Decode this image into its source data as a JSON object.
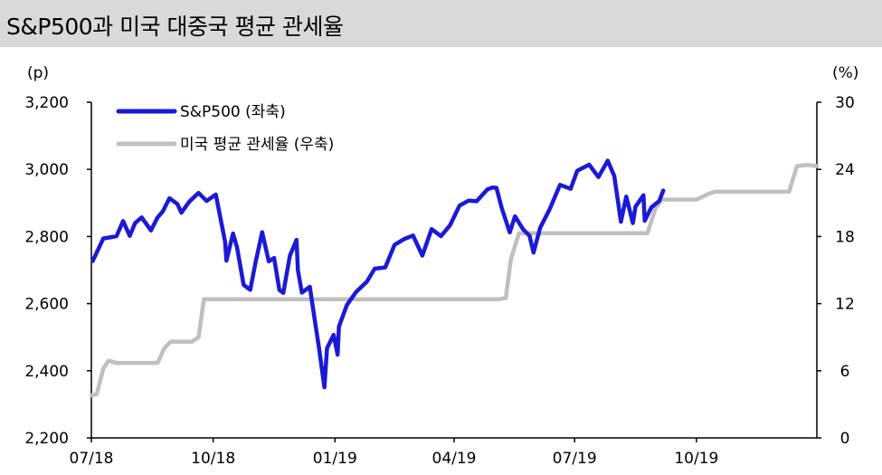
{
  "title": "S&P500과 미국 대중국 평균 관세율",
  "colors": {
    "sp500": "#1a1ad6",
    "tariff": "#bfbfbf",
    "axis": "#000000",
    "title_bg": "#d9d9d9"
  },
  "chart_data": {
    "type": "line",
    "title": "S&P500과 미국 대중국 평균 관세율",
    "left_unit": "(p)",
    "right_unit": "(%)",
    "y_left": {
      "min": 2200,
      "max": 3200,
      "ticks": [
        3200,
        3000,
        2800,
        2600,
        2400,
        2200
      ],
      "tick_labels": [
        "3,200",
        "3,000",
        "2,800",
        "2,600",
        "2,400",
        "2,200"
      ]
    },
    "y_right": {
      "min": 0,
      "max": 30,
      "ticks": [
        30,
        24,
        18,
        12,
        6,
        0
      ],
      "tick_labels": [
        "30",
        "24",
        "18",
        "12",
        "6",
        "0"
      ]
    },
    "x": {
      "start": "2018-07-01",
      "end": "2019-12-31",
      "ticks": [
        "2018-07-01",
        "2018-10-01",
        "2019-01-01",
        "2019-04-01",
        "2019-07-01",
        "2019-10-01"
      ],
      "tick_labels": [
        "07/18",
        "10/18",
        "01/19",
        "04/19",
        "07/19",
        "10/19"
      ]
    },
    "legend_position": "top-left",
    "series": [
      {
        "name": "S&P500 (좌축)",
        "axis": "left",
        "points": [
          [
            "2018-07-02",
            2727
          ],
          [
            "2018-07-06",
            2760
          ],
          [
            "2018-07-10",
            2794
          ],
          [
            "2018-07-16",
            2798
          ],
          [
            "2018-07-20",
            2801
          ],
          [
            "2018-07-25",
            2846
          ],
          [
            "2018-07-30",
            2802
          ],
          [
            "2018-08-03",
            2840
          ],
          [
            "2018-08-08",
            2857
          ],
          [
            "2018-08-15",
            2818
          ],
          [
            "2018-08-20",
            2857
          ],
          [
            "2018-08-24",
            2875
          ],
          [
            "2018-08-29",
            2914
          ],
          [
            "2018-09-04",
            2897
          ],
          [
            "2018-09-07",
            2871
          ],
          [
            "2018-09-13",
            2904
          ],
          [
            "2018-09-20",
            2930
          ],
          [
            "2018-09-26",
            2906
          ],
          [
            "2018-10-03",
            2925
          ],
          [
            "2018-10-05",
            2885
          ],
          [
            "2018-10-10",
            2785
          ],
          [
            "2018-10-11",
            2728
          ],
          [
            "2018-10-16",
            2809
          ],
          [
            "2018-10-19",
            2768
          ],
          [
            "2018-10-24",
            2656
          ],
          [
            "2018-10-29",
            2641
          ],
          [
            "2018-11-02",
            2723
          ],
          [
            "2018-11-07",
            2813
          ],
          [
            "2018-11-12",
            2726
          ],
          [
            "2018-11-16",
            2736
          ],
          [
            "2018-11-20",
            2641
          ],
          [
            "2018-11-23",
            2632
          ],
          [
            "2018-11-28",
            2743
          ],
          [
            "2018-12-03",
            2790
          ],
          [
            "2018-12-04",
            2700
          ],
          [
            "2018-12-07",
            2633
          ],
          [
            "2018-12-13",
            2650
          ],
          [
            "2018-12-17",
            2545
          ],
          [
            "2018-12-20",
            2467
          ],
          [
            "2018-12-24",
            2351
          ],
          [
            "2018-12-26",
            2467
          ],
          [
            "2018-12-31",
            2507
          ],
          [
            "2019-01-03",
            2448
          ],
          [
            "2019-01-04",
            2532
          ],
          [
            "2019-01-10",
            2596
          ],
          [
            "2019-01-17",
            2635
          ],
          [
            "2019-01-25",
            2665
          ],
          [
            "2019-01-31",
            2704
          ],
          [
            "2019-02-08",
            2708
          ],
          [
            "2019-02-15",
            2775
          ],
          [
            "2019-02-22",
            2792
          ],
          [
            "2019-03-01",
            2803
          ],
          [
            "2019-03-08",
            2743
          ],
          [
            "2019-03-15",
            2822
          ],
          [
            "2019-03-22",
            2801
          ],
          [
            "2019-03-29",
            2834
          ],
          [
            "2019-04-05",
            2892
          ],
          [
            "2019-04-12",
            2907
          ],
          [
            "2019-04-18",
            2905
          ],
          [
            "2019-04-26",
            2940
          ],
          [
            "2019-04-30",
            2946
          ],
          [
            "2019-05-03",
            2945
          ],
          [
            "2019-05-07",
            2884
          ],
          [
            "2019-05-13",
            2812
          ],
          [
            "2019-05-17",
            2860
          ],
          [
            "2019-05-23",
            2822
          ],
          [
            "2019-05-28",
            2802
          ],
          [
            "2019-05-31",
            2752
          ],
          [
            "2019-06-05",
            2826
          ],
          [
            "2019-06-12",
            2880
          ],
          [
            "2019-06-20",
            2954
          ],
          [
            "2019-06-28",
            2942
          ],
          [
            "2019-07-03",
            2996
          ],
          [
            "2019-07-12",
            3014
          ],
          [
            "2019-07-19",
            2977
          ],
          [
            "2019-07-26",
            3026
          ],
          [
            "2019-07-31",
            2980
          ],
          [
            "2019-08-01",
            2953
          ],
          [
            "2019-08-05",
            2844
          ],
          [
            "2019-08-09",
            2919
          ],
          [
            "2019-08-14",
            2840
          ],
          [
            "2019-08-16",
            2889
          ],
          [
            "2019-08-22",
            2923
          ],
          [
            "2019-08-23",
            2847
          ],
          [
            "2019-08-28",
            2887
          ],
          [
            "2019-09-03",
            2906
          ],
          [
            "2019-09-06",
            2937
          ]
        ]
      },
      {
        "name": "미국 평균 관세율 (우축)",
        "axis": "right",
        "points": [
          [
            "2018-07-01",
            3.8
          ],
          [
            "2018-07-05",
            3.9
          ],
          [
            "2018-07-10",
            6.2
          ],
          [
            "2018-07-14",
            6.9
          ],
          [
            "2018-07-20",
            6.7
          ],
          [
            "2018-08-10",
            6.7
          ],
          [
            "2018-08-20",
            6.7
          ],
          [
            "2018-08-25",
            8.0
          ],
          [
            "2018-08-30",
            8.6
          ],
          [
            "2018-09-15",
            8.6
          ],
          [
            "2018-09-20",
            9.0
          ],
          [
            "2018-09-24",
            12.4
          ],
          [
            "2018-09-28",
            12.4
          ],
          [
            "2019-05-05",
            12.4
          ],
          [
            "2019-05-10",
            12.5
          ],
          [
            "2019-05-14",
            16.0
          ],
          [
            "2019-05-20",
            18.3
          ],
          [
            "2019-08-25",
            18.3
          ],
          [
            "2019-08-31",
            20.5
          ],
          [
            "2019-09-05",
            21.3
          ],
          [
            "2019-09-10",
            21.3
          ],
          [
            "2019-10-01",
            21.3
          ],
          [
            "2019-10-10",
            21.8
          ],
          [
            "2019-10-15",
            22.0
          ],
          [
            "2019-12-10",
            22.0
          ],
          [
            "2019-12-16",
            24.3
          ],
          [
            "2019-12-24",
            24.4
          ],
          [
            "2019-12-31",
            24.3
          ]
        ]
      }
    ]
  }
}
